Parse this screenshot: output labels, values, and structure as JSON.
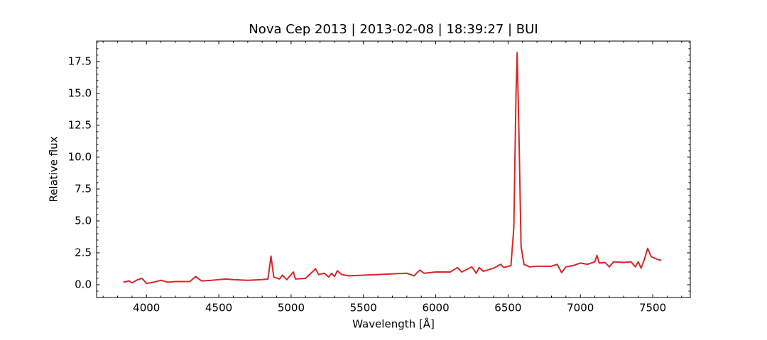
{
  "chart_data": {
    "type": "line",
    "title": "Nova Cep 2013 | 2013-02-08 | 18:39:27 | BUI",
    "x_label": "Wavelength [Å]",
    "y_label": "Relative flux",
    "x": [
      3840,
      3880,
      3900,
      3940,
      3970,
      4000,
      4050,
      4100,
      4150,
      4200,
      4300,
      4340,
      4380,
      4450,
      4550,
      4600,
      4700,
      4800,
      4840,
      4861,
      4880,
      4920,
      4940,
      4970,
      5015,
      5030,
      5100,
      5169,
      5190,
      5230,
      5260,
      5280,
      5300,
      5320,
      5350,
      5400,
      5500,
      5600,
      5700,
      5800,
      5850,
      5890,
      5920,
      6000,
      6100,
      6150,
      6180,
      6250,
      6280,
      6300,
      6330,
      6400,
      6450,
      6470,
      6520,
      6540,
      6555,
      6563,
      6575,
      6590,
      6610,
      6650,
      6700,
      6800,
      6840,
      6870,
      6900,
      6950,
      7000,
      7050,
      7100,
      7115,
      7130,
      7170,
      7200,
      7230,
      7300,
      7350,
      7380,
      7400,
      7420,
      7440,
      7465,
      7490,
      7530,
      7560
    ],
    "series": [
      {
        "color": "#d62728",
        "values": [
          0.2,
          0.3,
          0.15,
          0.4,
          0.5,
          0.1,
          0.2,
          0.35,
          0.2,
          0.25,
          0.25,
          0.65,
          0.3,
          0.35,
          0.45,
          0.4,
          0.35,
          0.4,
          0.45,
          2.25,
          0.6,
          0.45,
          0.75,
          0.4,
          1.0,
          0.45,
          0.5,
          1.25,
          0.8,
          0.9,
          0.6,
          0.9,
          0.65,
          1.1,
          0.8,
          0.7,
          0.75,
          0.8,
          0.85,
          0.9,
          0.7,
          1.15,
          0.9,
          1.0,
          1.0,
          1.35,
          1.0,
          1.4,
          0.9,
          1.35,
          1.05,
          1.3,
          1.6,
          1.35,
          1.5,
          4.5,
          15,
          18.2,
          12,
          3,
          1.6,
          1.4,
          1.45,
          1.45,
          1.6,
          0.95,
          1.4,
          1.5,
          1.7,
          1.6,
          1.8,
          2.3,
          1.7,
          1.75,
          1.4,
          1.8,
          1.75,
          1.8,
          1.4,
          1.8,
          1.3,
          1.9,
          2.85,
          2.2,
          2.0,
          1.9
        ]
      }
    ],
    "xlim": [
      3655,
      7760
    ],
    "ylim": [
      -1.0,
      19.1
    ],
    "xticks": [
      4000,
      4500,
      5000,
      5500,
      6000,
      6500,
      7000,
      7500
    ],
    "yticks": [
      {
        "value": 0,
        "label": "0.0"
      },
      2.5,
      {
        "value": 5,
        "label": "5.0"
      },
      7.5,
      {
        "value": 10,
        "label": "10.0"
      },
      12.5,
      {
        "value": 15,
        "label": "15.0"
      },
      17.5
    ],
    "grid": false
  }
}
